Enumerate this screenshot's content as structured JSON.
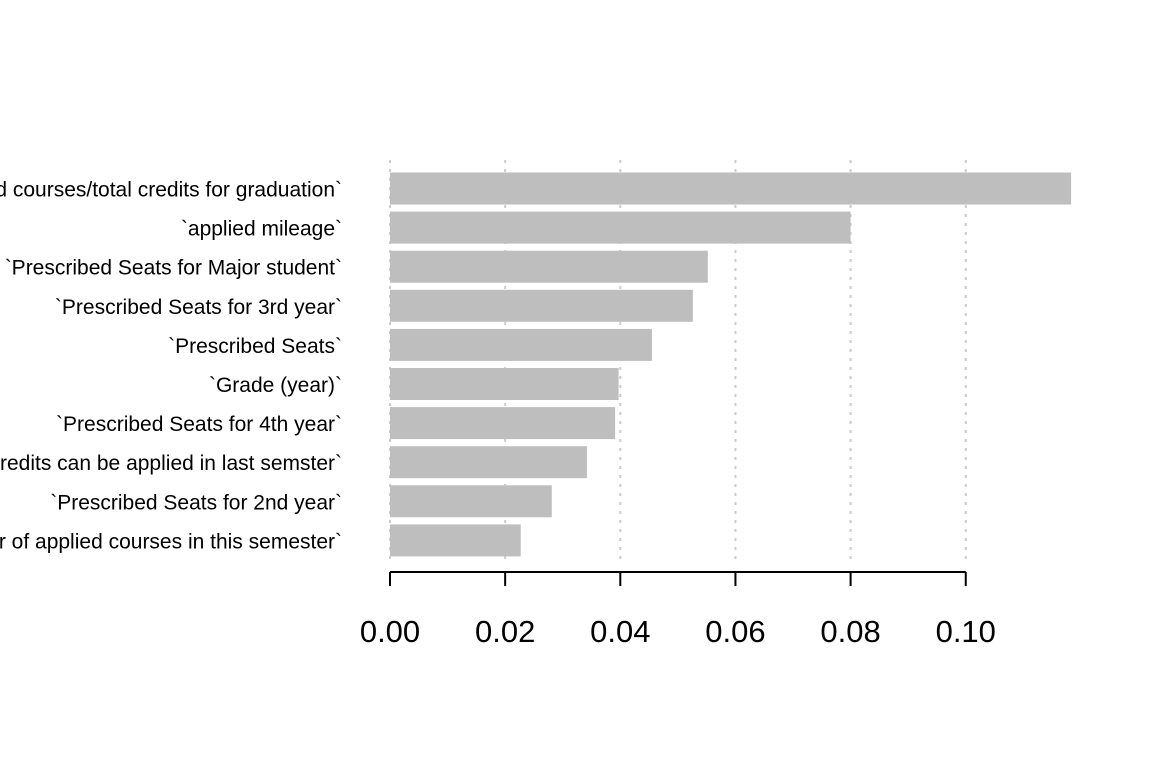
{
  "chart_data": {
    "type": "bar",
    "orientation": "horizontal",
    "categories": [
      "`Sum of applied courses/total credits for graduation`",
      "`applied mileage`",
      "`Prescribed Seats for Major student`",
      "`Prescribed Seats for 3rd year`",
      "`Prescribed Seats`",
      "`Grade (year)`",
      "`Prescribed Seats for 4th year`",
      "`Total credits can be applied in last semster`",
      "`Prescribed Seats for 2nd year`",
      "`Number of applied courses in this semester`"
    ],
    "values": [
      0.1183,
      0.08,
      0.0552,
      0.0526,
      0.0455,
      0.0397,
      0.0391,
      0.0342,
      0.0281,
      0.0227
    ],
    "xticks": [
      "0.00",
      "0.02",
      "0.04",
      "0.06",
      "0.08",
      "0.10"
    ],
    "xlim": [
      0,
      0.1183
    ],
    "grid": true,
    "bar_color": "#bebebe",
    "grid_color": "#cccccc",
    "title": "",
    "xlabel": "",
    "ylabel": ""
  }
}
